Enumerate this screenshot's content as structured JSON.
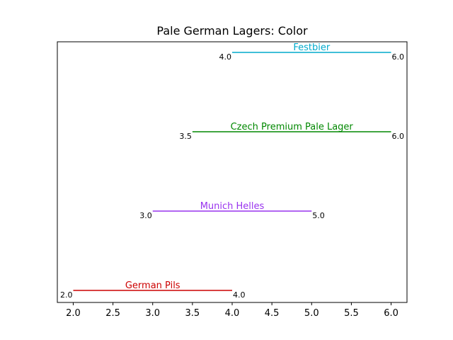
{
  "chart_data": {
    "type": "range",
    "title": "Pale German Lagers: Color",
    "xlabel": "",
    "ylabel": "",
    "xlim": [
      1.8,
      6.2
    ],
    "x_ticks": [
      "2.0",
      "2.5",
      "3.0",
      "3.5",
      "4.0",
      "4.5",
      "5.0",
      "5.5",
      "6.0"
    ],
    "grid": false,
    "series": [
      {
        "name": "German Pils",
        "min": 2.0,
        "max": 4.0,
        "min_label": "2.0",
        "max_label": "4.0",
        "color": "#cc0000"
      },
      {
        "name": "Munich Helles",
        "min": 3.0,
        "max": 5.0,
        "min_label": "3.0",
        "max_label": "5.0",
        "color": "#9933ee"
      },
      {
        "name": "Czech Premium Pale Lager",
        "min": 3.5,
        "max": 6.0,
        "min_label": "3.5",
        "max_label": "6.0",
        "color": "#008800"
      },
      {
        "name": "Festbier",
        "min": 4.0,
        "max": 6.0,
        "min_label": "4.0",
        "max_label": "6.0",
        "color": "#00aacc"
      }
    ]
  }
}
